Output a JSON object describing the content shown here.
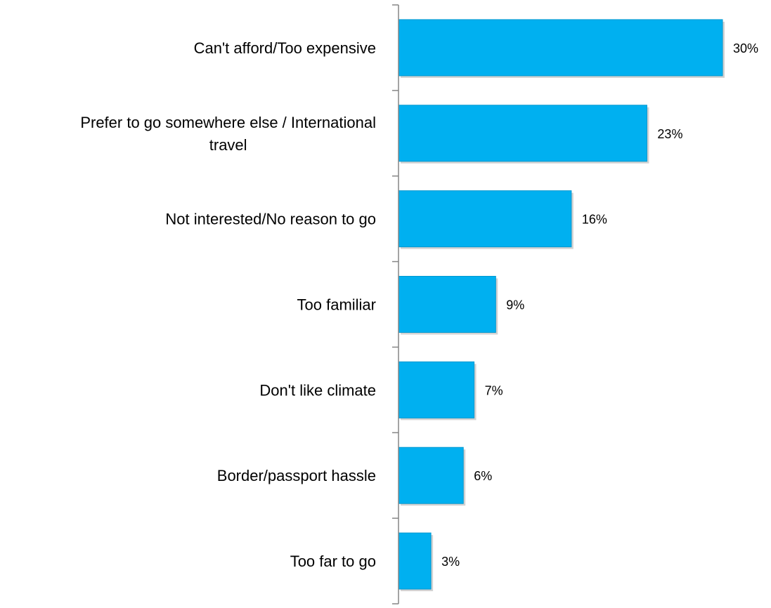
{
  "chart_data": {
    "type": "bar",
    "orientation": "horizontal",
    "categories": [
      "Can't afford/Too expensive",
      "Prefer to go somewhere else / International travel",
      "Not interested/No reason to go",
      "Too familiar",
      "Don't like climate",
      "Border/passport hassle",
      "Too far to go"
    ],
    "category_lines": [
      [
        "Can't afford/Too expensive"
      ],
      [
        "Prefer to go somewhere else / International",
        "travel"
      ],
      [
        "Not interested/No reason to go"
      ],
      [
        "Too familiar"
      ],
      [
        "Don't like climate"
      ],
      [
        "Border/passport hassle"
      ],
      [
        "Too far to go"
      ]
    ],
    "values": [
      30,
      23,
      16,
      9,
      7,
      6,
      3
    ],
    "value_labels": [
      "30%",
      "23%",
      "16%",
      "9%",
      "7%",
      "6%",
      "3%"
    ],
    "unit": "%",
    "xlim": [
      0,
      30
    ],
    "grid": false,
    "legend": "none",
    "colors": {
      "bar": "#00B0F0",
      "bar_stroke": "#0098D0",
      "axis": "#868686",
      "shadow": "#BFBFBF"
    }
  }
}
